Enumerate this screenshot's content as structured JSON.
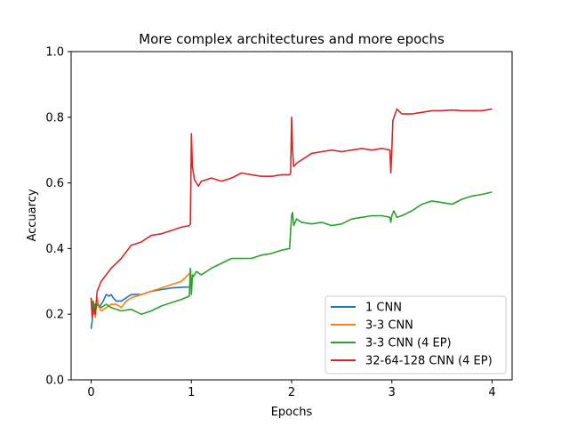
{
  "chart_data": {
    "type": "line",
    "title": "More complex architectures and more epochs",
    "xlabel": "Epochs",
    "ylabel": "Accuarcy",
    "xlim": [
      -0.2,
      4.2
    ],
    "ylim": [
      0.0,
      1.0
    ],
    "xticks": [
      0,
      1,
      2,
      3,
      4
    ],
    "yticks": [
      0.0,
      0.2,
      0.4,
      0.6,
      0.8,
      1.0
    ],
    "xtick_labels": [
      "0",
      "1",
      "2",
      "3",
      "4"
    ],
    "ytick_labels": [
      "0.0",
      "0.2",
      "0.4",
      "0.6",
      "0.8",
      "1.0"
    ],
    "grid": false,
    "legend_position": "lower-right",
    "series": [
      {
        "name": "1 CNN",
        "color": "#1f77b4",
        "x": [
          0.0,
          0.01,
          0.02,
          0.03,
          0.04,
          0.05,
          0.06,
          0.08,
          0.1,
          0.12,
          0.15,
          0.18,
          0.2,
          0.22,
          0.25,
          0.3,
          0.35,
          0.4,
          0.5,
          0.6,
          0.7,
          0.8,
          0.9,
          1.0
        ],
        "y": [
          0.155,
          0.18,
          0.24,
          0.2,
          0.23,
          0.22,
          0.25,
          0.22,
          0.23,
          0.24,
          0.26,
          0.255,
          0.26,
          0.25,
          0.24,
          0.24,
          0.25,
          0.26,
          0.26,
          0.27,
          0.275,
          0.28,
          0.282,
          0.283
        ]
      },
      {
        "name": "3-3 CNN",
        "color": "#ff7f0e",
        "x": [
          0.0,
          0.01,
          0.02,
          0.04,
          0.06,
          0.08,
          0.1,
          0.15,
          0.2,
          0.25,
          0.3,
          0.35,
          0.4,
          0.5,
          0.6,
          0.7,
          0.8,
          0.9,
          0.95,
          1.0
        ],
        "y": [
          0.25,
          0.2,
          0.22,
          0.19,
          0.25,
          0.22,
          0.21,
          0.22,
          0.23,
          0.23,
          0.22,
          0.24,
          0.25,
          0.26,
          0.27,
          0.28,
          0.29,
          0.3,
          0.315,
          0.33
        ]
      },
      {
        "name": "3-3 CNN (4 EP)",
        "color": "#2ca02c",
        "x": [
          0.0,
          0.01,
          0.02,
          0.04,
          0.06,
          0.1,
          0.15,
          0.2,
          0.3,
          0.4,
          0.5,
          0.6,
          0.7,
          0.8,
          0.9,
          0.98,
          0.99,
          1.0,
          1.01,
          1.02,
          1.05,
          1.1,
          1.2,
          1.3,
          1.4,
          1.5,
          1.6,
          1.7,
          1.8,
          1.9,
          1.98,
          1.99,
          2.0,
          2.01,
          2.02,
          2.05,
          2.1,
          2.2,
          2.3,
          2.4,
          2.5,
          2.6,
          2.7,
          2.8,
          2.9,
          2.98,
          2.99,
          3.0,
          3.02,
          3.05,
          3.1,
          3.2,
          3.3,
          3.4,
          3.5,
          3.6,
          3.7,
          3.8,
          3.9,
          4.0
        ],
        "y": [
          0.25,
          0.22,
          0.24,
          0.21,
          0.23,
          0.22,
          0.23,
          0.22,
          0.21,
          0.215,
          0.2,
          0.21,
          0.225,
          0.235,
          0.245,
          0.255,
          0.34,
          0.26,
          0.32,
          0.315,
          0.33,
          0.32,
          0.34,
          0.355,
          0.37,
          0.37,
          0.37,
          0.38,
          0.385,
          0.395,
          0.4,
          0.455,
          0.5,
          0.51,
          0.47,
          0.49,
          0.48,
          0.475,
          0.48,
          0.47,
          0.475,
          0.49,
          0.495,
          0.5,
          0.5,
          0.495,
          0.48,
          0.5,
          0.515,
          0.495,
          0.5,
          0.515,
          0.535,
          0.545,
          0.54,
          0.535,
          0.55,
          0.56,
          0.565,
          0.572
        ]
      },
      {
        "name": "32-64-128 CNN (4 EP)",
        "color": "#d62728",
        "x": [
          0.0,
          0.01,
          0.02,
          0.04,
          0.06,
          0.1,
          0.15,
          0.2,
          0.3,
          0.4,
          0.5,
          0.6,
          0.7,
          0.8,
          0.9,
          0.98,
          0.99,
          1.0,
          1.01,
          1.03,
          1.05,
          1.07,
          1.1,
          1.2,
          1.3,
          1.4,
          1.5,
          1.6,
          1.7,
          1.8,
          1.9,
          1.98,
          1.99,
          2.0,
          2.01,
          2.02,
          2.05,
          2.1,
          2.2,
          2.3,
          2.4,
          2.5,
          2.6,
          2.7,
          2.8,
          2.9,
          2.98,
          2.99,
          3.0,
          3.01,
          3.05,
          3.1,
          3.2,
          3.3,
          3.4,
          3.5,
          3.6,
          3.7,
          3.8,
          3.9,
          4.0
        ],
        "y": [
          0.25,
          0.19,
          0.22,
          0.2,
          0.27,
          0.3,
          0.32,
          0.34,
          0.37,
          0.41,
          0.42,
          0.44,
          0.445,
          0.455,
          0.465,
          0.47,
          0.475,
          0.75,
          0.65,
          0.61,
          0.6,
          0.59,
          0.605,
          0.615,
          0.605,
          0.615,
          0.63,
          0.625,
          0.62,
          0.62,
          0.625,
          0.625,
          0.63,
          0.8,
          0.7,
          0.65,
          0.66,
          0.67,
          0.69,
          0.695,
          0.7,
          0.695,
          0.7,
          0.705,
          0.7,
          0.705,
          0.7,
          0.63,
          0.7,
          0.79,
          0.825,
          0.81,
          0.81,
          0.815,
          0.82,
          0.82,
          0.822,
          0.82,
          0.82,
          0.82,
          0.825
        ]
      }
    ]
  }
}
